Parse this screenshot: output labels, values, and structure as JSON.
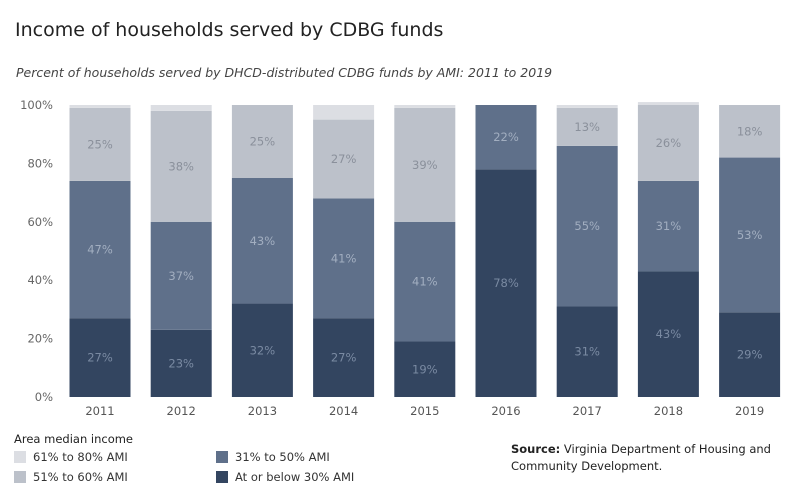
{
  "title": "Income of households served by CDBG funds",
  "subtitle": "Percent of households served by DHCD-distributed CDBG funds by AMI: 2011 to 2019",
  "legend": {
    "title": "Area median income",
    "items": [
      {
        "key": "s61_80",
        "label": "61% to 80% AMI",
        "color": "#dcdee3"
      },
      {
        "key": "s51_60",
        "label": "51% to 60% AMI",
        "color": "#bcc1ca"
      },
      {
        "key": "s31_50",
        "label": "31% to 50% AMI",
        "color": "#5f708a"
      },
      {
        "key": "s0_30",
        "label": "At or below 30% AMI",
        "color": "#334560"
      }
    ]
  },
  "source": {
    "label": "Source:",
    "text": "Virginia Department of Housing and Community Development."
  },
  "chart_data": {
    "type": "bar",
    "stacked": true,
    "categories": [
      "2011",
      "2012",
      "2013",
      "2014",
      "2015",
      "2016",
      "2017",
      "2018",
      "2019"
    ],
    "ylim": [
      0,
      100
    ],
    "yticks": [
      "0%",
      "20%",
      "40%",
      "60%",
      "80%",
      "100%"
    ],
    "ytick_values": [
      0,
      20,
      40,
      60,
      80,
      100
    ],
    "grid": false,
    "legend_position": "bottom-left",
    "series": [
      {
        "key": "s0_30",
        "name": "At or below 30% AMI",
        "color": "#334560",
        "label_color": "#7a8aa2",
        "values": [
          27,
          23,
          32,
          27,
          19,
          78,
          31,
          43,
          29
        ]
      },
      {
        "key": "s31_50",
        "name": "31% to 50% AMI",
        "color": "#5f708a",
        "label_color": "#a2aec0",
        "values": [
          47,
          37,
          43,
          41,
          41,
          22,
          55,
          31,
          53
        ]
      },
      {
        "key": "s51_60",
        "name": "51% to 60% AMI",
        "color": "#bcc1ca",
        "label_color": "#8a909b",
        "values": [
          25,
          38,
          25,
          27,
          39,
          0,
          13,
          26,
          18
        ]
      },
      {
        "key": "s61_80",
        "name": "61% to 80% AMI",
        "color": "#dcdee3",
        "label_color": "#9a9ea6",
        "values": [
          1,
          2,
          0,
          5,
          1,
          0,
          1,
          1,
          0
        ]
      }
    ],
    "data_labels": {
      "s0_30": [
        "27%",
        "23%",
        "32%",
        "27%",
        "19%",
        "78%",
        "31%",
        "43%",
        "29%"
      ],
      "s31_50": [
        "47%",
        "37%",
        "43%",
        "41%",
        "41%",
        "22%",
        "55%",
        "31%",
        "53%"
      ],
      "s51_60": [
        "25%",
        "38%",
        "25%",
        "27%",
        "39%",
        "",
        "13%",
        "26%",
        "18%"
      ],
      "s61_80": [
        "",
        "",
        "",
        "",
        "",
        "",
        "",
        "",
        ""
      ]
    }
  }
}
